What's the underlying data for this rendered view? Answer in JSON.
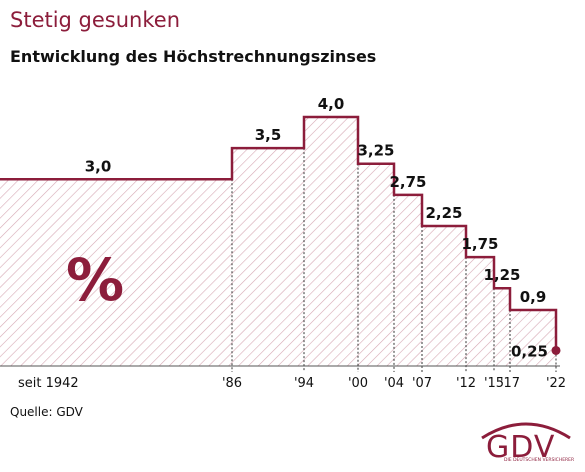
{
  "title": "Stetig gesunken",
  "subtitle": "Entwicklung des Höchstrechnungszinses",
  "source": "Quelle: GDV",
  "unit_symbol": "%",
  "logo": {
    "text": "GDV",
    "subtext": "DIE DEUTSCHEN VERSICHERER"
  },
  "colors": {
    "accent": "#8c1d3b",
    "hatch": "#d6a8b4"
  },
  "chart_data": {
    "type": "area",
    "step": true,
    "title": "Stetig gesunken",
    "subtitle": "Entwicklung des Höchstrechnungszinses",
    "x_tick_labels": [
      "seit 1942",
      "'86",
      "'94",
      "'00",
      "'04",
      "'07",
      "'12",
      "'15",
      "'17",
      "'22"
    ],
    "steps": [
      {
        "from": 1942,
        "to": 1986,
        "value": 3.0,
        "label": "3,0"
      },
      {
        "from": 1986,
        "to": 1994,
        "value": 3.5,
        "label": "3,5"
      },
      {
        "from": 1994,
        "to": 2000,
        "value": 4.0,
        "label": "4,0"
      },
      {
        "from": 2000,
        "to": 2004,
        "value": 3.25,
        "label": "3,25"
      },
      {
        "from": 2004,
        "to": 2007,
        "value": 2.75,
        "label": "2,75"
      },
      {
        "from": 2007,
        "to": 2012,
        "value": 2.25,
        "label": "2,25"
      },
      {
        "from": 2012,
        "to": 2015,
        "value": 1.75,
        "label": "1,75"
      },
      {
        "from": 2015,
        "to": 2017,
        "value": 1.25,
        "label": "1,25"
      },
      {
        "from": 2017,
        "to": 2022,
        "value": 0.9,
        "label": "0,9"
      },
      {
        "from": 2022,
        "to": 2022,
        "value": 0.25,
        "label": "0,25"
      }
    ],
    "ylim": [
      0,
      4.0
    ],
    "grid": false,
    "legend": "none"
  }
}
